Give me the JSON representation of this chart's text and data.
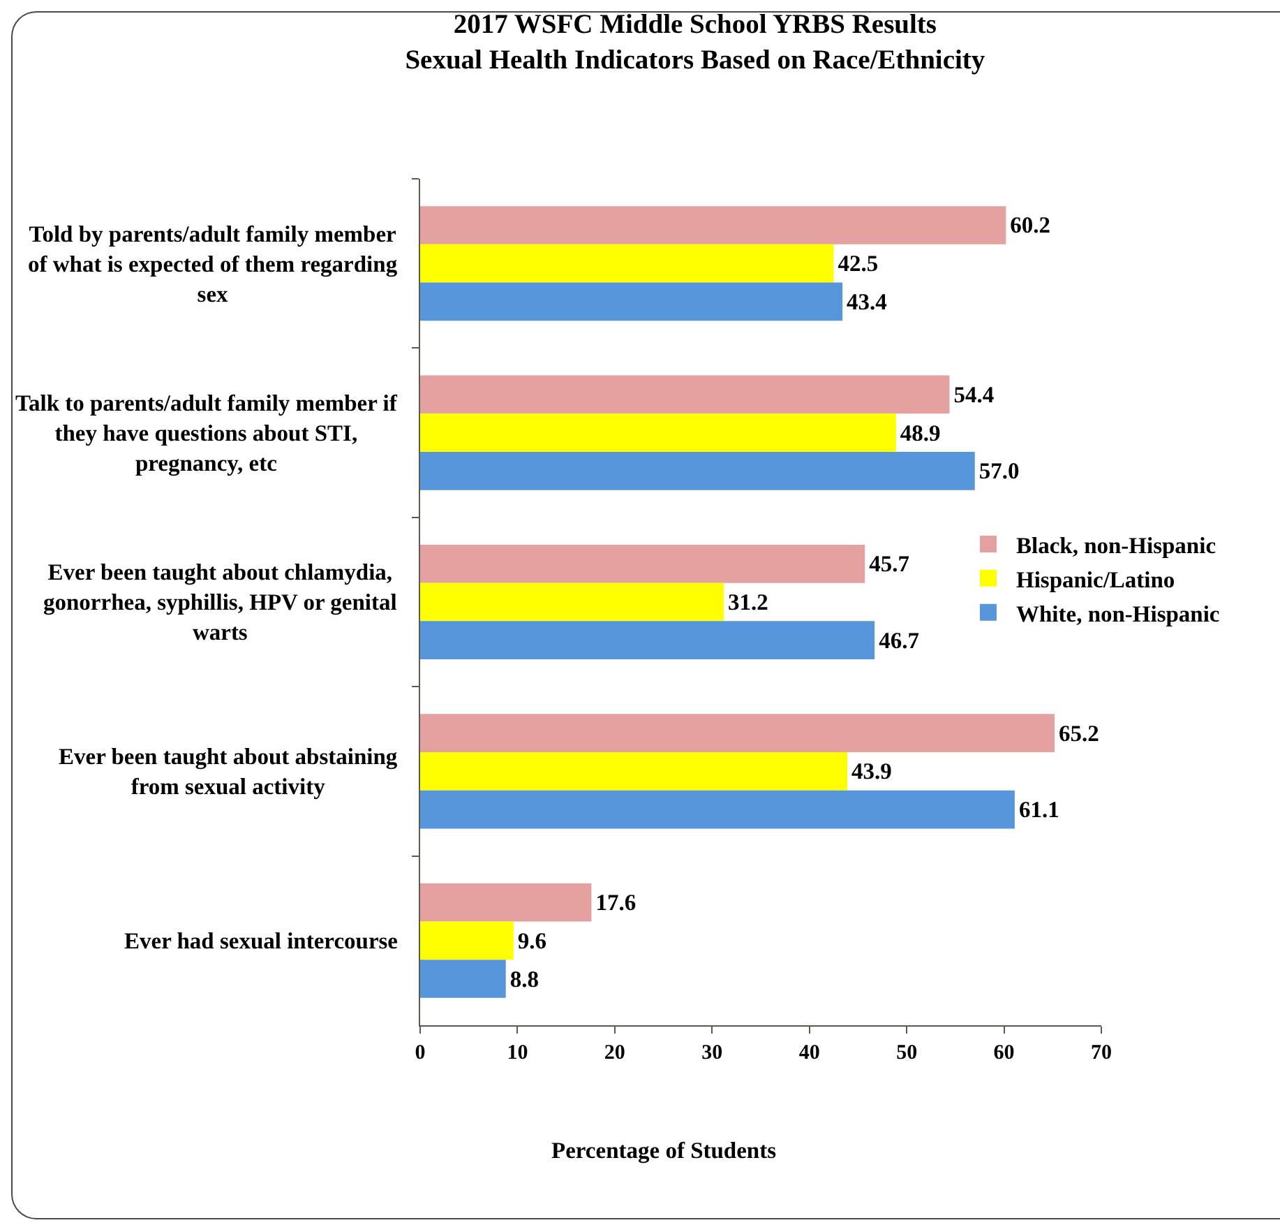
{
  "chart_data": {
    "type": "bar",
    "orientation": "horizontal",
    "title": "2017 WSFC Middle School YRBS Results",
    "subtitle": "Sexual Health Indicators Based on Race/Ethnicity",
    "xlabel": "Percentage of Students",
    "categories": [
      "Told by parents/adult family member of what is expected of them regarding sex",
      "Talk to parents/adult family member if they have questions about STI, pregnancy, etc",
      "Ever been taught about chlamydia, gonorrhea, syphillis, HPV or genital warts",
      "Ever been taught about abstaining from sexual activity",
      "Ever had sexual intercourse"
    ],
    "series": [
      {
        "name": "Black, non-Hispanic",
        "color": "#e5a0a0",
        "values": [
          60.2,
          54.4,
          45.7,
          65.2,
          17.6
        ],
        "value_labels": [
          "60.2",
          "54.4",
          "45.7",
          "65.2",
          "17.6"
        ]
      },
      {
        "name": "Hispanic/Latino",
        "color": "#ffff00",
        "values": [
          42.5,
          48.9,
          31.2,
          43.9,
          9.6
        ],
        "value_labels": [
          "42.5",
          "48.9",
          "31.2",
          "43.9",
          "9.6"
        ]
      },
      {
        "name": "White, non-Hispanic",
        "color": "#5896dc",
        "values": [
          43.4,
          57.0,
          46.7,
          61.1,
          8.8
        ],
        "value_labels": [
          "43.4",
          "57.0",
          "46.7",
          "61.1",
          "8.8"
        ]
      }
    ],
    "xlim": [
      0,
      70
    ],
    "xticks": [
      0,
      10,
      20,
      30,
      40,
      50,
      60,
      70
    ],
    "grid": false,
    "legend": "right"
  }
}
